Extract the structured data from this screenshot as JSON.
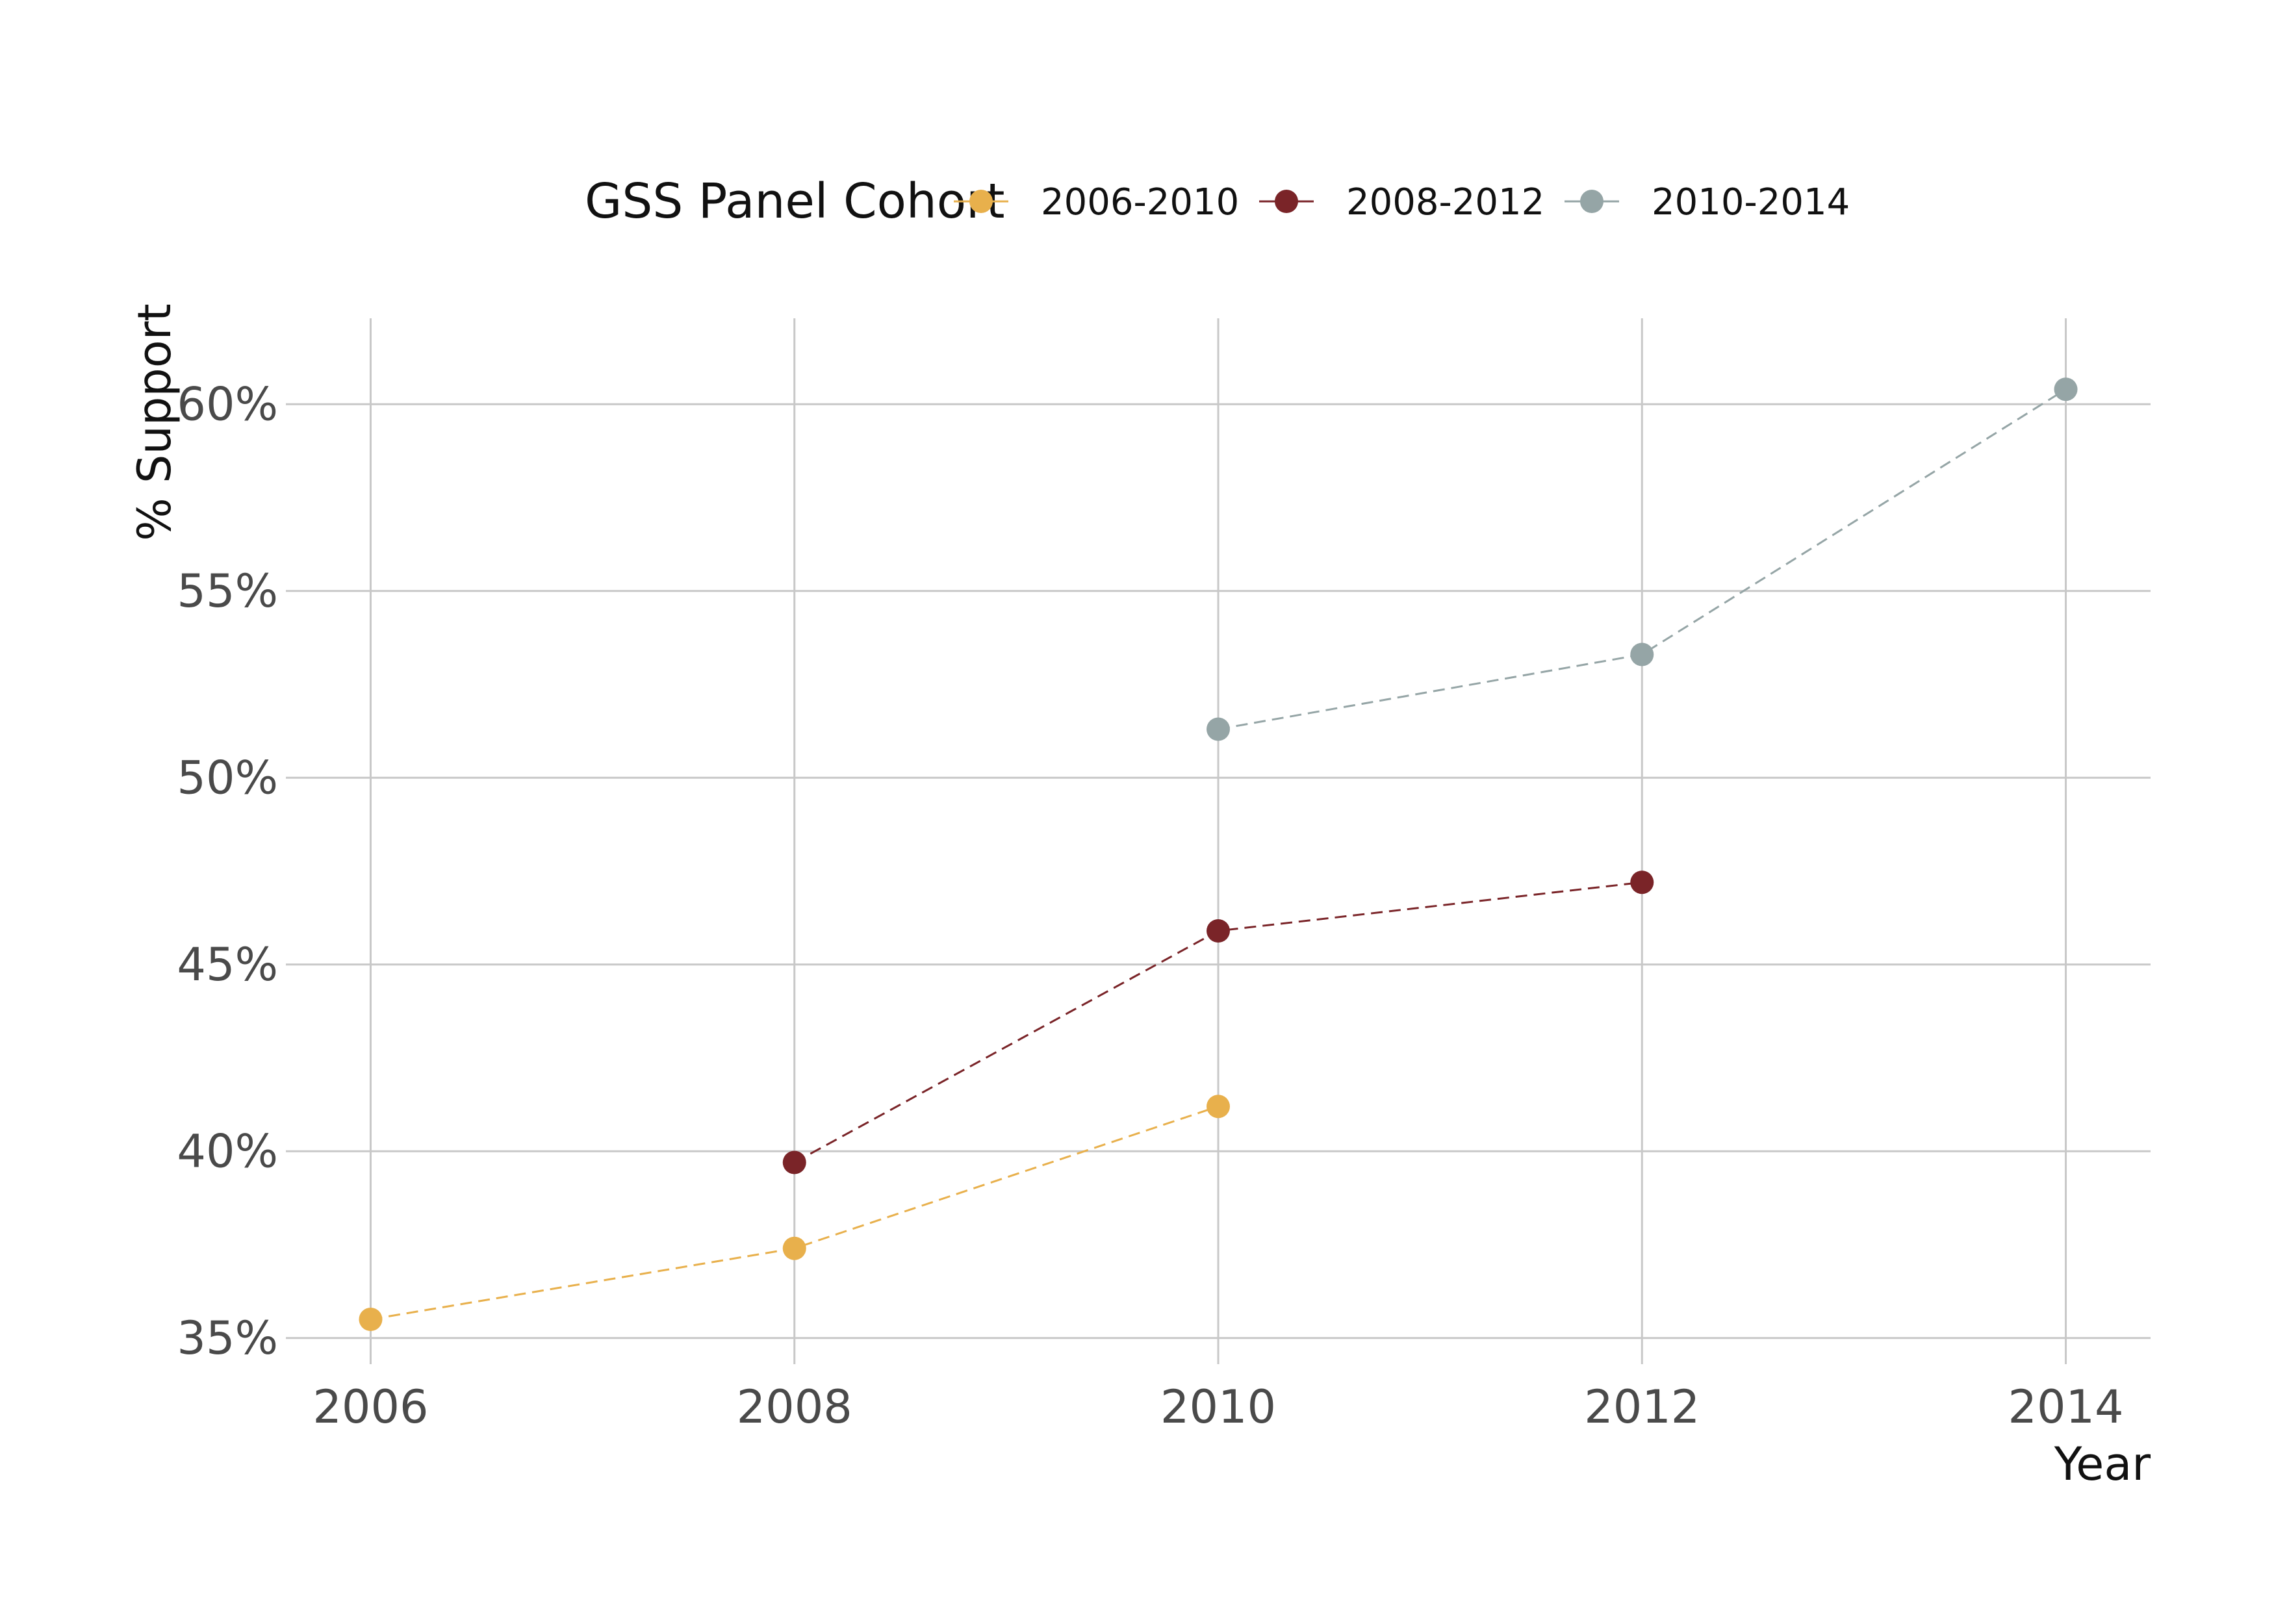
{
  "chart_data": {
    "type": "line",
    "title": "",
    "xlabel": "Year",
    "ylabel": "% Support",
    "x_ticks": [
      "2006",
      "2008",
      "2010",
      "2012",
      "2014"
    ],
    "y_ticks": [
      "35%",
      "40%",
      "45%",
      "50%",
      "55%",
      "60%"
    ],
    "xlim": [
      2005.6,
      2014.4
    ],
    "ylim": [
      0.343,
      0.623
    ],
    "grid": true,
    "legend": {
      "title": "GSS Panel Cohort",
      "position": "top"
    },
    "series": [
      {
        "name": "2006-2010",
        "color": "#E8B04C",
        "line_style": "dashed",
        "points": [
          {
            "x": 2006,
            "y": 0.355
          },
          {
            "x": 2008,
            "y": 0.374
          },
          {
            "x": 2010,
            "y": 0.412
          }
        ]
      },
      {
        "name": "2008-2012",
        "color": "#7A2428",
        "line_style": "dashed",
        "points": [
          {
            "x": 2008,
            "y": 0.397
          },
          {
            "x": 2010,
            "y": 0.459
          },
          {
            "x": 2012,
            "y": 0.472
          }
        ]
      },
      {
        "name": "2010-2014",
        "color": "#95A5A6",
        "line_style": "dashed",
        "points": [
          {
            "x": 2010,
            "y": 0.513
          },
          {
            "x": 2012,
            "y": 0.533
          },
          {
            "x": 2014,
            "y": 0.604
          }
        ]
      }
    ]
  }
}
